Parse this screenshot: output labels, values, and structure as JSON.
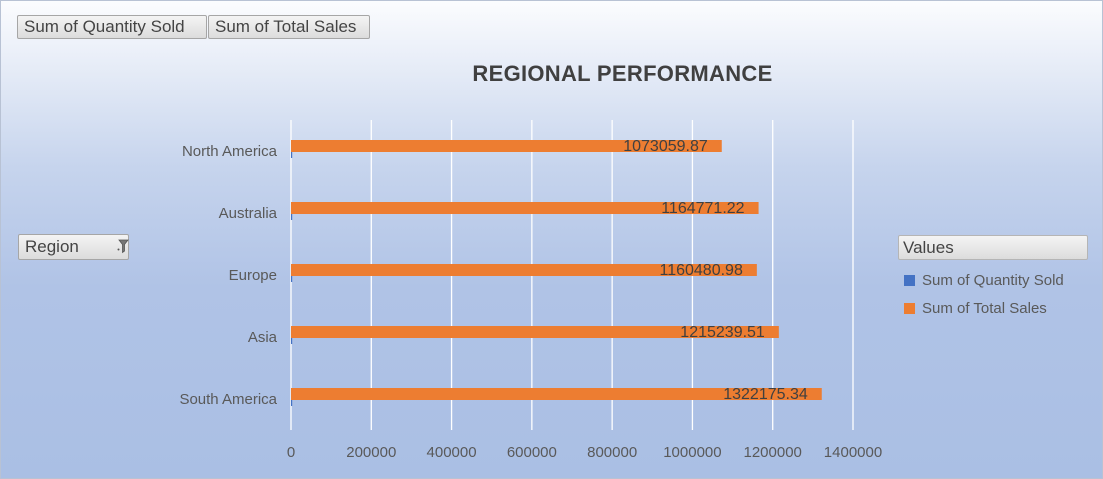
{
  "field_buttons": {
    "quantity": "Sum of Quantity Sold",
    "sales": "Sum of Total Sales",
    "region": "Region"
  },
  "legend": {
    "header": "Values",
    "items": [
      {
        "label": "Sum of Quantity Sold",
        "color": "#4472c4"
      },
      {
        "label": "Sum of Total Sales",
        "color": "#ed7d31"
      }
    ]
  },
  "icons": {
    "region_filter": "filter-funnel-icon"
  },
  "chart_data": {
    "type": "bar",
    "orientation": "horizontal",
    "title": "REGIONAL PERFORMANCE",
    "categories": [
      "North America",
      "Australia",
      "Europe",
      "Asia",
      "South America"
    ],
    "series": [
      {
        "name": "Sum of Quantity Sold",
        "color": "#4472c4",
        "values": [
          null,
          null,
          null,
          null,
          null
        ]
      },
      {
        "name": "Sum of Total Sales",
        "color": "#ed7d31",
        "values": [
          1073059.87,
          1164771.22,
          1160480.98,
          1215239.51,
          1322175.34
        ]
      }
    ],
    "data_labels": [
      "1073059.87",
      "1164771.22",
      "1160480.98",
      "1215239.51",
      "1322175.34"
    ],
    "xlim": [
      0,
      1400000
    ],
    "xticks": [
      0,
      200000,
      400000,
      600000,
      800000,
      1000000,
      1200000,
      1400000
    ],
    "grid": true,
    "legend_position": "right"
  }
}
